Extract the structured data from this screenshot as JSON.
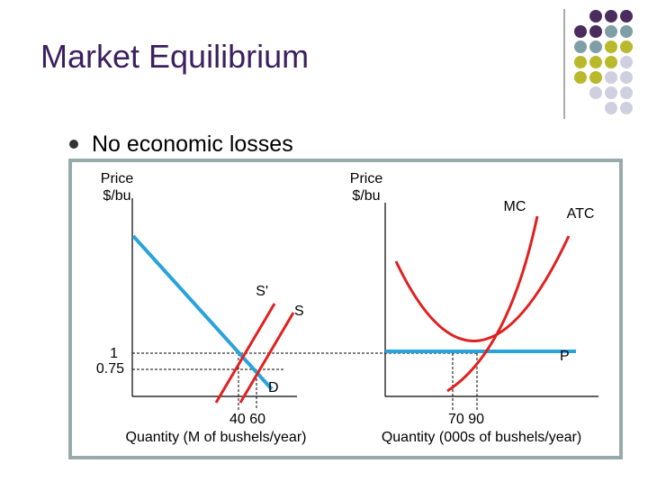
{
  "header": {
    "title": "Market Equilibrium"
  },
  "bullet": "No economic losses",
  "market": {
    "y_label": [
      "Price",
      "$/bu"
    ],
    "price_ticks": [
      "1",
      "0.75"
    ],
    "quantity_ticks": "40 60",
    "x_label": "Quantity (M of bushels/year)",
    "supply_new": "S'",
    "supply": "S",
    "demand": "D"
  },
  "firm": {
    "y_label": [
      "Price",
      "$/bu"
    ],
    "mc": "MC",
    "atc": "ATC",
    "price": "P",
    "quantity_ticks": "70 90",
    "x_label": "Quantity (000s of bushels/year)"
  }
}
